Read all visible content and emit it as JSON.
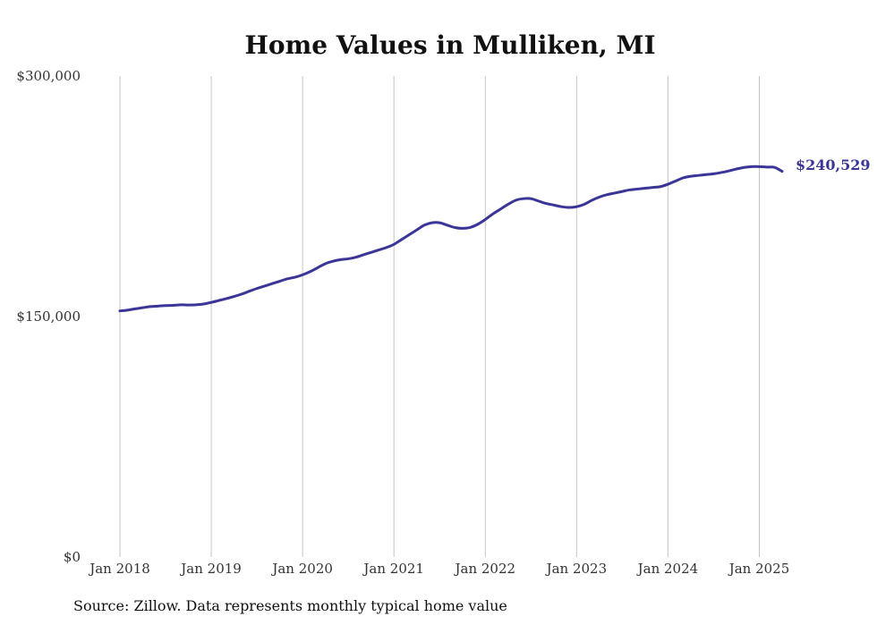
{
  "chart_data": {
    "type": "line",
    "title": "Home Values in Mulliken, MI",
    "xlabel": "",
    "ylabel": "",
    "ylim": [
      0,
      300000
    ],
    "yticks": [
      0,
      150000,
      300000
    ],
    "ytick_labels": [
      "$0",
      "$150,000",
      "$300,000"
    ],
    "xlim": [
      "2018-01",
      "2025-04"
    ],
    "xticks": [
      "2018-01",
      "2019-01",
      "2020-01",
      "2021-01",
      "2022-01",
      "2023-01",
      "2024-01",
      "2025-01"
    ],
    "xtick_labels": [
      "Jan 2018",
      "Jan 2019",
      "Jan 2020",
      "Jan 2021",
      "Jan 2022",
      "Jan 2023",
      "Jan 2024",
      "Jan 2025"
    ],
    "grid": "vertical",
    "line_color": "#3a3596",
    "end_label": "$240,529",
    "series": [
      {
        "x": [
          "2018-01",
          "2018-02",
          "2018-03",
          "2018-04",
          "2018-05",
          "2018-06",
          "2018-07",
          "2018-08",
          "2018-09",
          "2018-10",
          "2018-11",
          "2018-12",
          "2019-01",
          "2019-02",
          "2019-03",
          "2019-04",
          "2019-05",
          "2019-06",
          "2019-07",
          "2019-08",
          "2019-09",
          "2019-10",
          "2019-11",
          "2019-12",
          "2020-01",
          "2020-02",
          "2020-03",
          "2020-04",
          "2020-05",
          "2020-06",
          "2020-07",
          "2020-08",
          "2020-09",
          "2020-10",
          "2020-11",
          "2020-12",
          "2021-01",
          "2021-02",
          "2021-03",
          "2021-04",
          "2021-05",
          "2021-06",
          "2021-07",
          "2021-08",
          "2021-09",
          "2021-10",
          "2021-11",
          "2021-12",
          "2022-01",
          "2022-02",
          "2022-03",
          "2022-04",
          "2022-05",
          "2022-06",
          "2022-07",
          "2022-08",
          "2022-09",
          "2022-10",
          "2022-11",
          "2022-12",
          "2023-01",
          "2023-02",
          "2023-03",
          "2023-04",
          "2023-05",
          "2023-06",
          "2023-07",
          "2023-08",
          "2023-09",
          "2023-10",
          "2023-11",
          "2023-12",
          "2024-01",
          "2024-02",
          "2024-03",
          "2024-04",
          "2024-05",
          "2024-06",
          "2024-07",
          "2024-08",
          "2024-09",
          "2024-10",
          "2024-11",
          "2024-12",
          "2025-01",
          "2025-02",
          "2025-03",
          "2025-04"
        ],
        "values": [
          153500,
          154000,
          154800,
          155500,
          156200,
          156500,
          156800,
          157000,
          157300,
          157200,
          157300,
          157800,
          158800,
          160000,
          161200,
          162500,
          164000,
          165800,
          167500,
          169000,
          170500,
          172000,
          173500,
          174500,
          176000,
          178000,
          180500,
          183000,
          184500,
          185500,
          186000,
          187000,
          188500,
          190000,
          191500,
          193000,
          195000,
          198000,
          201000,
          204000,
          207000,
          208500,
          208500,
          207000,
          205500,
          205000,
          205500,
          207500,
          210500,
          214000,
          217000,
          220000,
          222500,
          223500,
          223500,
          222000,
          220500,
          219500,
          218500,
          218000,
          218500,
          220000,
          222500,
          224500,
          226000,
          227000,
          228000,
          229000,
          229500,
          230000,
          230500,
          231000,
          232500,
          234500,
          236500,
          237500,
          238000,
          238500,
          239000,
          239800,
          240800,
          242000,
          243000,
          243500,
          243500,
          243200,
          243000,
          240529
        ]
      }
    ]
  },
  "footer": {
    "source": "Source: Zillow. Data represents monthly typical home value"
  }
}
